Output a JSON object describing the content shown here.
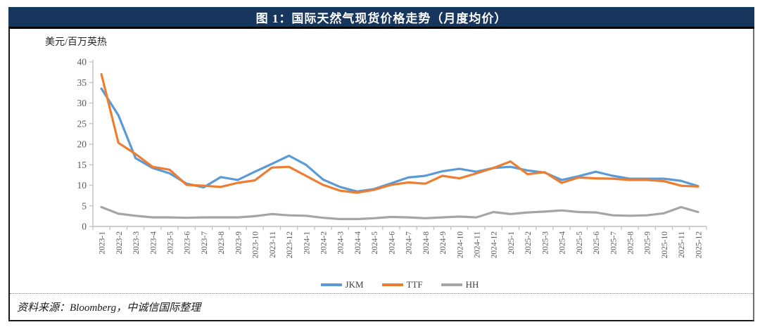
{
  "title": "图 1：国际天然气现货价格走势（月度均价）",
  "y_axis_unit": "美元/百万英热",
  "source": "资料来源：Bloomberg，中诚信国际整理",
  "colors": {
    "header_bg": "#17365D",
    "header_text": "#ffffff",
    "axis_line": "#BFBFBF",
    "axis_text": "#595959",
    "jkm": "#5B9BD5",
    "ttf": "#ED7D31",
    "hh": "#A5A5A5"
  },
  "chart_data": {
    "type": "line",
    "title": "图 1：国际天然气现货价格走势（月度均价）",
    "xlabel": "",
    "ylabel": "美元/百万英热",
    "ylim": [
      0,
      40
    ],
    "ytick_step": 5,
    "grid": false,
    "legend_position": "bottom",
    "categories": [
      "2023-1",
      "2023-2",
      "2023-3",
      "2023-4",
      "2023-5",
      "2023-6",
      "2023-7",
      "2023-8",
      "2023-9",
      "2023-10",
      "2023-11",
      "2023-12",
      "2024-1",
      "2024-2",
      "2024-3",
      "2024-4",
      "2024-5",
      "2024-6",
      "2024-7",
      "2024-8",
      "2024-9",
      "2024-10",
      "2024-11",
      "2024-12",
      "2025-1",
      "2025-2",
      "2025-3",
      "2025-4",
      "2025-5",
      "2025-6",
      "2025-7",
      "2025-8",
      "2025-9",
      "2025-10",
      "2025-11",
      "2025-12"
    ],
    "series": [
      {
        "name": "JKM",
        "color": "#5B9BD5",
        "values": [
          33.5,
          27.0,
          16.6,
          14.2,
          12.9,
          10.4,
          9.5,
          12.0,
          11.3,
          13.3,
          15.2,
          17.2,
          15.0,
          11.4,
          9.6,
          8.5,
          9.1,
          10.5,
          11.9,
          12.3,
          13.4,
          14.0,
          13.3,
          14.2,
          14.5,
          13.6,
          13.1,
          11.3,
          12.2,
          13.3,
          12.3,
          11.6,
          11.6,
          11.6,
          11.1,
          9.8
        ]
      },
      {
        "name": "TTF",
        "color": "#ED7D31",
        "values": [
          37.0,
          20.3,
          17.6,
          14.5,
          13.8,
          10.1,
          9.9,
          9.6,
          10.6,
          11.2,
          14.3,
          14.5,
          12.3,
          10.1,
          8.7,
          8.2,
          8.9,
          10.1,
          10.7,
          10.4,
          12.3,
          11.7,
          12.9,
          14.2,
          15.8,
          12.7,
          13.2,
          10.6,
          11.9,
          11.7,
          11.6,
          11.3,
          11.3,
          11.0,
          9.9,
          9.7
        ]
      },
      {
        "name": "HH",
        "color": "#A5A5A5",
        "values": [
          4.7,
          3.1,
          2.6,
          2.2,
          2.2,
          2.1,
          2.2,
          2.2,
          2.2,
          2.5,
          3.0,
          2.7,
          2.6,
          2.1,
          1.8,
          1.8,
          2.0,
          2.3,
          2.2,
          2.0,
          2.2,
          2.4,
          2.2,
          3.5,
          3.0,
          3.4,
          3.6,
          3.9,
          3.5,
          3.4,
          2.7,
          2.6,
          2.7,
          3.2,
          4.7,
          3.5
        ]
      }
    ]
  }
}
